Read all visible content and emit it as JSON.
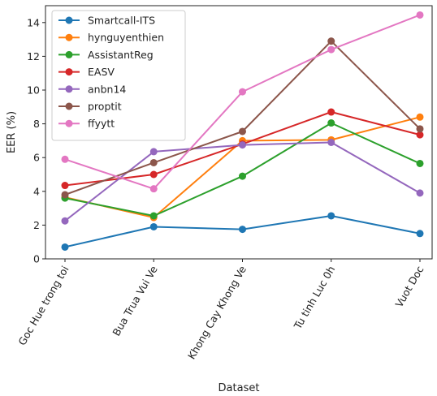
{
  "chart_data": {
    "type": "line",
    "title": "",
    "xlabel": "Dataset",
    "ylabel": "EER (%)",
    "categories": [
      "Goc Hue trong toi",
      "Bua Trua Vui Ve",
      "Khong Cay Khong Ve",
      "Tu tinh Luc 0h",
      "Vuot Doc"
    ],
    "ylim": [
      0,
      15
    ],
    "yticks": [
      0,
      2,
      4,
      6,
      8,
      10,
      12,
      14
    ],
    "grid": false,
    "legend_position": "top-left",
    "series": [
      {
        "name": "Smartcall-ITS",
        "color": "#1f77b4",
        "values": [
          0.7,
          1.9,
          1.75,
          2.55,
          1.5
        ]
      },
      {
        "name": "hynguyenthien",
        "color": "#ff7f0e",
        "values": [
          3.65,
          2.45,
          7.0,
          7.05,
          8.4
        ]
      },
      {
        "name": "AssistantReg",
        "color": "#2ca02c",
        "values": [
          3.6,
          2.55,
          4.9,
          8.05,
          5.65
        ]
      },
      {
        "name": "EASV",
        "color": "#d62728",
        "values": [
          4.35,
          5.0,
          6.8,
          8.7,
          7.35
        ]
      },
      {
        "name": "anbn14",
        "color": "#9467bd",
        "values": [
          2.25,
          6.35,
          6.75,
          6.9,
          3.9
        ]
      },
      {
        "name": "proptit",
        "color": "#8c564b",
        "values": [
          3.8,
          5.7,
          7.55,
          12.9,
          7.7
        ]
      },
      {
        "name": "ffyytt",
        "color": "#e377c2",
        "values": [
          5.9,
          4.15,
          9.9,
          12.4,
          14.45
        ]
      }
    ]
  }
}
